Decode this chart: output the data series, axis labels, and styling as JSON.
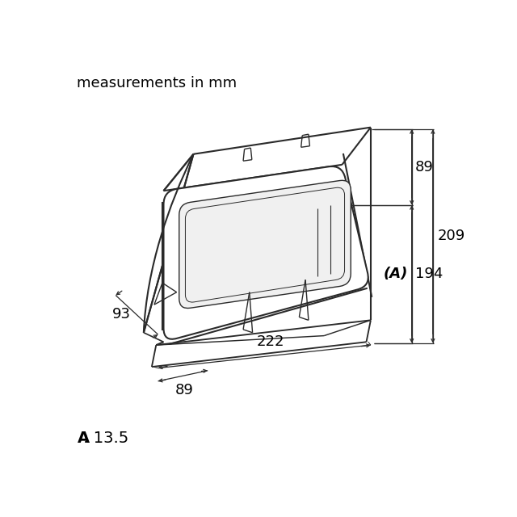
{
  "title": "measurements in mm",
  "footer_bold": "A",
  "footer_rest": ": 13.5",
  "dim_209": "209",
  "dim_89_right": "89",
  "dim_194": "194",
  "dim_93": "93",
  "dim_222": "222",
  "dim_89_bottom": "89",
  "label_A": "(A)",
  "bg_color": "#ffffff",
  "line_color": "#2a2a2a",
  "dim_color": "#2a2a2a",
  "text_color": "#000000",
  "body_lw": 1.5,
  "detail_lw": 1.0,
  "dim_lw": 0.9
}
